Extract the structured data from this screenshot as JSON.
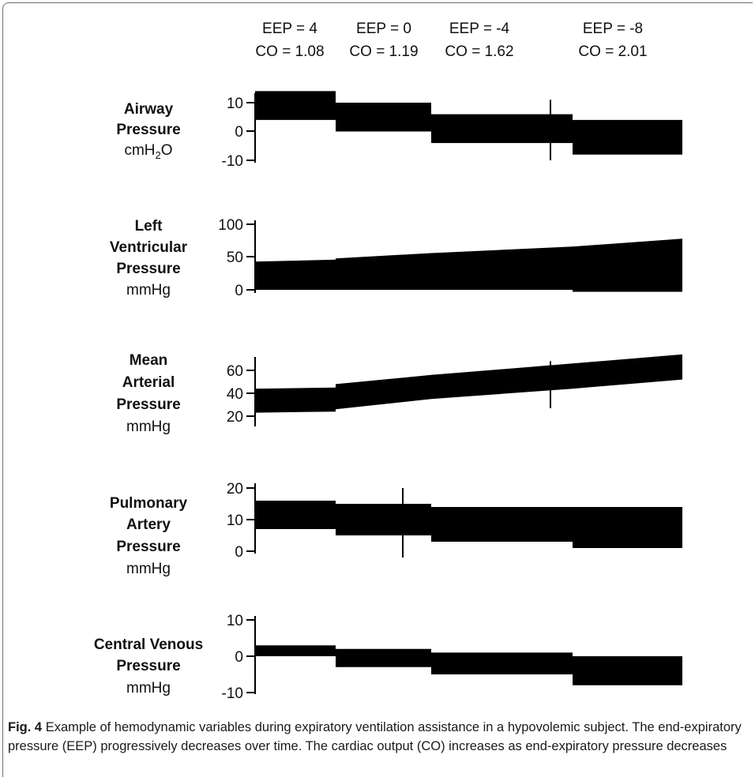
{
  "chart_data": {
    "type": "line",
    "phases": [
      {
        "eep": "EEP = 4",
        "co": "CO = 1.08"
      },
      {
        "eep": "EEP = 0",
        "co": "CO = 1.19"
      },
      {
        "eep": "EEP = -4",
        "co": "CO = 1.62"
      },
      {
        "eep": "EEP = -8",
        "co": "CO = 2.01"
      }
    ],
    "panels": [
      {
        "id": "airway",
        "label_lines": [
          "Airway",
          "Pressure"
        ],
        "unit": "cmH2O",
        "unit_parts": [
          "cmH",
          "2",
          "O"
        ],
        "ticks": [
          "10",
          "0",
          "-10"
        ],
        "ylim": [
          -10,
          10
        ],
        "segments": [
          {
            "lo": 4,
            "hi": 14
          },
          {
            "lo": 0,
            "hi": 10
          },
          {
            "lo": -4,
            "hi": 6
          },
          {
            "lo": -8,
            "hi": 4
          }
        ],
        "spikes": [
          {
            "phase": 2,
            "from": -10,
            "to": 11
          }
        ]
      },
      {
        "id": "lv",
        "label_lines": [
          "Left",
          "Ventricular",
          "Pressure"
        ],
        "unit": "mmHg",
        "ticks": [
          "100",
          "50",
          "0"
        ],
        "ylim": [
          0,
          100
        ],
        "segments": [
          {
            "lo": 0,
            "hi": 43,
            "hi_end": 46
          },
          {
            "lo": 0,
            "hi": 48,
            "hi_end": 56
          },
          {
            "lo": 0,
            "hi": 56,
            "hi_end": 66
          },
          {
            "lo": -3,
            "hi": 66,
            "hi_end": 78
          }
        ],
        "spikes": []
      },
      {
        "id": "map",
        "label_lines": [
          "Mean",
          "Arterial",
          "Pressure"
        ],
        "unit": "mmHg",
        "ticks": [
          "60",
          "40",
          "20"
        ],
        "ylim": [
          20,
          70
        ],
        "segments": [
          {
            "lo": 23,
            "hi": 44,
            "lo_end": 24,
            "hi_end": 45
          },
          {
            "lo": 26,
            "hi": 48,
            "lo_end": 35,
            "hi_end": 56
          },
          {
            "lo": 35,
            "hi": 56,
            "lo_end": 44,
            "hi_end": 66
          },
          {
            "lo": 44,
            "hi": 66,
            "lo_end": 52,
            "hi_end": 74
          }
        ],
        "spikes": [
          {
            "phase": 2,
            "from": 27,
            "to": 68
          }
        ]
      },
      {
        "id": "pa",
        "label_lines": [
          "Pulmonary",
          "Artery",
          "Pressure"
        ],
        "unit": "mmHg",
        "ticks": [
          "20",
          "10",
          "0"
        ],
        "ylim": [
          0,
          20
        ],
        "segments": [
          {
            "lo": 7,
            "hi": 16
          },
          {
            "lo": 5,
            "hi": 15
          },
          {
            "lo": 3,
            "hi": 14
          },
          {
            "lo": 1,
            "hi": 14
          }
        ],
        "spikes": [
          {
            "phase": 1,
            "from": -2,
            "to": 20
          }
        ]
      },
      {
        "id": "cvp",
        "label_lines": [
          "Central Venous",
          "Pressure"
        ],
        "unit": "mmHg",
        "ticks": [
          "10",
          "0",
          "-10"
        ],
        "ylim": [
          -10,
          10
        ],
        "segments": [
          {
            "lo": 0,
            "hi": 3
          },
          {
            "lo": -3,
            "hi": 2
          },
          {
            "lo": -5,
            "hi": 1
          },
          {
            "lo": -8,
            "hi": 0
          }
        ],
        "spikes": []
      }
    ]
  },
  "caption": {
    "label": "Fig. 4",
    "text": "Example of hemodynamic variables during expiratory ventilation assistance in a hypovolemic subject. The end-expiratory pressure (EEP) progressively decreases over time. The cardiac output (CO) increases as end-expiratory pressure decreases"
  },
  "colors": {
    "trace": "#000000",
    "frame": "#6e6e6e",
    "caption": "#1a1a1a"
  }
}
